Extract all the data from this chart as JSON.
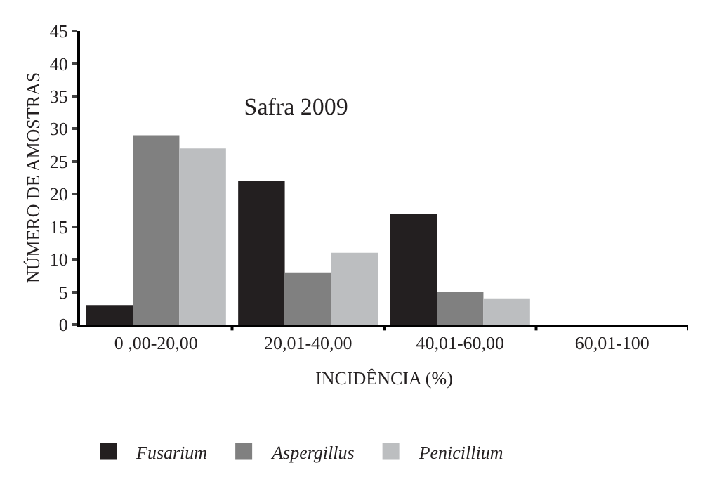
{
  "chart_data": {
    "type": "bar",
    "title": "Safra 2009",
    "xlabel": "INCIDÊNCIA (%)",
    "ylabel": "NÚMERO DE AMOSTRAS",
    "categories": [
      "0 ,00-20,00",
      "20,01-40,00",
      "40,01-60,00",
      "60,01-100"
    ],
    "series": [
      {
        "name": "Fusarium",
        "color": "#231f20",
        "values": [
          3,
          22,
          17,
          0
        ]
      },
      {
        "name": "Aspergillus",
        "color": "#808080",
        "values": [
          29,
          8,
          5,
          0
        ]
      },
      {
        "name": "Penicillium",
        "color": "#bcbec0",
        "values": [
          27,
          11,
          4,
          0
        ]
      }
    ],
    "ylim": [
      0,
      45
    ],
    "yticks": [
      0,
      5,
      10,
      15,
      20,
      25,
      30,
      35,
      40,
      45
    ],
    "legend": "bottom"
  }
}
